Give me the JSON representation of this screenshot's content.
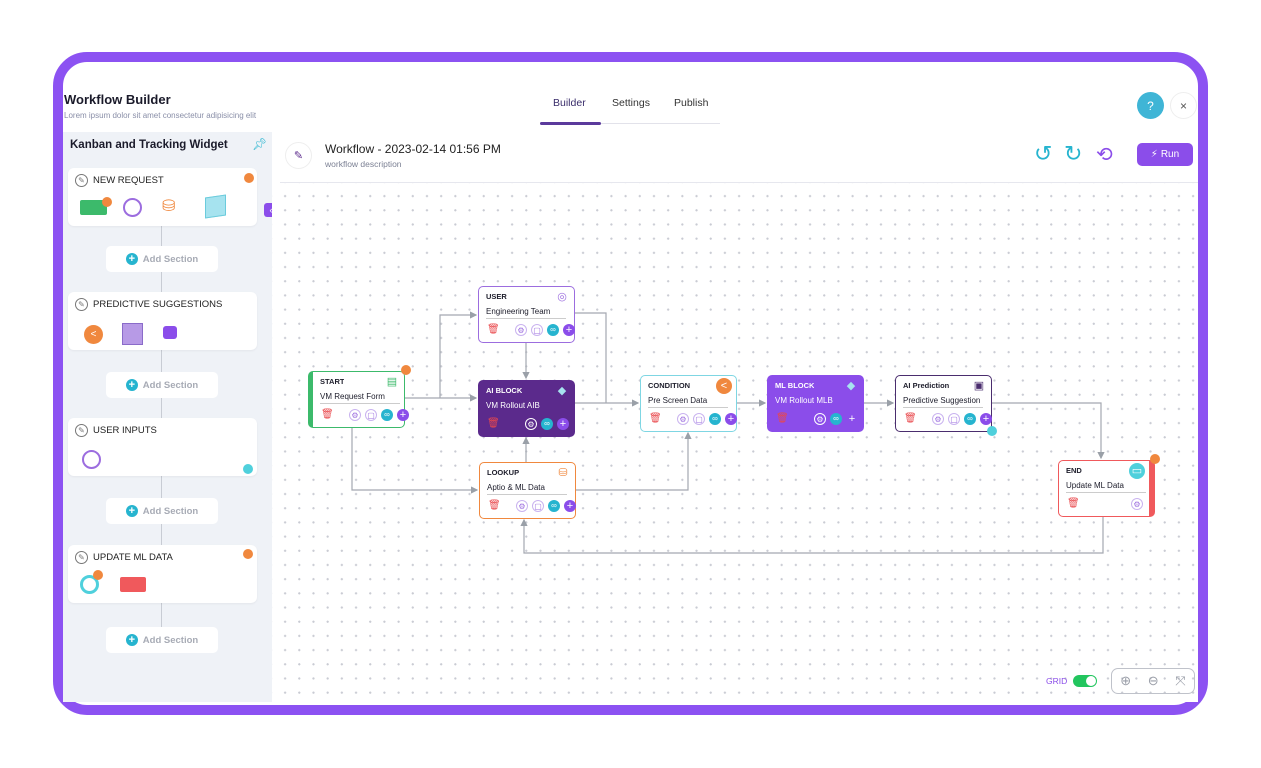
{
  "header": {
    "title": "Workflow Builder",
    "subtitle": "Lorem ipsum dolor sit amet consectetur adipisicing elit",
    "tabs": [
      {
        "label": "Builder",
        "active": true
      },
      {
        "label": "Settings"
      },
      {
        "label": "Publish"
      }
    ],
    "help_label": "?",
    "close_label": "×"
  },
  "sidebar": {
    "title": "Kanban and Tracking Widget",
    "sections": [
      {
        "label": "NEW REQUEST"
      },
      {
        "label": "PREDICTIVE SUGGESTIONS"
      },
      {
        "label": "USER INPUTS"
      },
      {
        "label": "UPDATE ML DATA"
      }
    ],
    "add_section_label": "Add Section"
  },
  "workflow": {
    "title": "Workflow - 2023-02-14 01:56 PM",
    "description": "workflow description",
    "run_label": "Run"
  },
  "nodes": [
    {
      "id": "start",
      "type": "START",
      "label": "VM Request Form",
      "color": "#3cba6b",
      "icon": "form-icon"
    },
    {
      "id": "user",
      "type": "USER",
      "label": "Engineering Team",
      "color": "#9c6ddf",
      "icon": "user-icon"
    },
    {
      "id": "ai",
      "type": "AI BLOCK",
      "label": "VM Rollout AIB",
      "color": "#5b2a8c",
      "icon": "cube-icon"
    },
    {
      "id": "lookup",
      "type": "LOOKUP",
      "label": "Aptio & ML Data",
      "color": "#f0883e",
      "icon": "database-search-icon"
    },
    {
      "id": "condition",
      "type": "CONDITION",
      "label": "Pre Screen Data",
      "color": "#7fd6e3",
      "icon": "share-icon"
    },
    {
      "id": "ml",
      "type": "ML BLOCK",
      "label": "VM Rollout MLB",
      "color": "#8b4dea",
      "icon": "cube-icon"
    },
    {
      "id": "pred",
      "type": "AI Prediction",
      "label": "Predictive Suggestion",
      "color": "#4a2d6e",
      "icon": "robot-icon"
    },
    {
      "id": "end",
      "type": "END",
      "label": "Update ML Data",
      "color": "#f0595c",
      "icon": "folder-icon"
    }
  ],
  "footer": {
    "grid_label": "GRID",
    "grid_on": true
  },
  "colors": {
    "accent": "#8c52f2",
    "teal": "#26b4cf",
    "orange": "#f0883e",
    "green": "#3cba6b",
    "red": "#f0595c"
  }
}
